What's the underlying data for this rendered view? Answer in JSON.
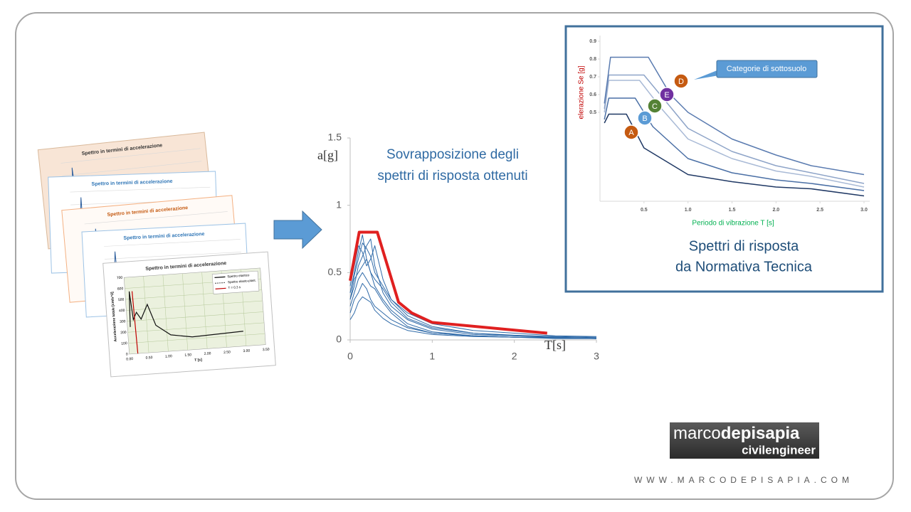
{
  "thumbnails": {
    "titles": [
      "Spettro in termini di accelerazione",
      "Spettro in termini di accelerazione",
      "Spettro in termini di accelerazione",
      "Spettro in termini di accelerazione",
      "Spettro in termini di accelerazione"
    ],
    "legend": [
      "Spettro elastico",
      "Spettro elasto-plast.",
      "T = 0.3 s"
    ],
    "y_axis_label": "Accelerazione totale [cm/s^2]",
    "x_axis_label": "T [s]",
    "yticks": [
      "0",
      "100",
      "200",
      "300",
      "400",
      "500",
      "600",
      "700"
    ],
    "xticks": [
      "0.00",
      "0.50",
      "1.00",
      "1.50",
      "2.00",
      "2.50",
      "3.00",
      "3.50"
    ]
  },
  "chart_data": [
    {
      "type": "line",
      "annotation": [
        "Sovrapposizione degli",
        "spettri di risposta ottenuti"
      ],
      "y_label": "a[g]",
      "x_label": "T[s]",
      "xlim": [
        0,
        3
      ],
      "ylim": [
        0,
        1.5
      ],
      "xticks": [
        0,
        1,
        2,
        3
      ],
      "yticks": [
        0,
        0.5,
        1,
        1.5
      ],
      "x": [
        0,
        0.05,
        0.1,
        0.15,
        0.2,
        0.25,
        0.3,
        0.4,
        0.5,
        0.7,
        1,
        1.5,
        2,
        2.5,
        3
      ],
      "series": [
        {
          "color": "#2f6aa8",
          "values": [
            0.35,
            0.5,
            0.65,
            0.78,
            0.6,
            0.5,
            0.4,
            0.3,
            0.22,
            0.12,
            0.06,
            0.03,
            0.02,
            0.015,
            0.01
          ]
        },
        {
          "color": "#2f6aa8",
          "values": [
            0.3,
            0.4,
            0.55,
            0.62,
            0.7,
            0.75,
            0.55,
            0.35,
            0.25,
            0.15,
            0.08,
            0.04,
            0.03,
            0.02,
            0.01
          ]
        },
        {
          "color": "#2f6aa8",
          "values": [
            0.25,
            0.35,
            0.45,
            0.5,
            0.45,
            0.4,
            0.38,
            0.28,
            0.2,
            0.1,
            0.05,
            0.03,
            0.02,
            0.01,
            0.01
          ]
        },
        {
          "color": "#2f6aa8",
          "values": [
            0.4,
            0.55,
            0.7,
            0.65,
            0.55,
            0.6,
            0.7,
            0.45,
            0.3,
            0.18,
            0.1,
            0.05,
            0.03,
            0.02,
            0.015
          ]
        },
        {
          "color": "#2f6aa8",
          "values": [
            0.2,
            0.3,
            0.35,
            0.42,
            0.38,
            0.3,
            0.25,
            0.2,
            0.15,
            0.09,
            0.05,
            0.03,
            0.02,
            0.02,
            0.01
          ]
        },
        {
          "color": "#2f6aa8",
          "values": [
            0.3,
            0.45,
            0.5,
            0.55,
            0.6,
            0.5,
            0.45,
            0.38,
            0.28,
            0.16,
            0.09,
            0.05,
            0.035,
            0.025,
            0.02
          ]
        },
        {
          "color": "#2f6aa8",
          "values": [
            0.15,
            0.2,
            0.28,
            0.32,
            0.3,
            0.28,
            0.22,
            0.16,
            0.12,
            0.07,
            0.04,
            0.025,
            0.02,
            0.015,
            0.01
          ]
        },
        {
          "color": "#2f6aa8",
          "values": [
            0.35,
            0.48,
            0.6,
            0.72,
            0.68,
            0.62,
            0.5,
            0.4,
            0.3,
            0.2,
            0.12,
            0.07,
            0.05,
            0.03,
            0.025
          ]
        },
        {
          "color": "#e02020",
          "x": [
            0,
            0.11,
            0.33,
            0.59,
            0.75,
            1,
            2.4
          ],
          "values": [
            0.44,
            0.8,
            0.8,
            0.28,
            0.2,
            0.13,
            0.05
          ]
        }
      ]
    },
    {
      "type": "line",
      "caption": [
        "Spettri di risposta",
        "da Normativa Tecnica"
      ],
      "callout": "Categorie di sottosuolo",
      "y_label": "elerazione Se [g]",
      "x_label": "Periodo di vibrazione T [s]",
      "xlim": [
        0,
        3
      ],
      "ylim": [
        0,
        0.9
      ],
      "xticks": [
        0.5,
        {
          "value": 1,
          "label": "1.0"
        },
        1.5,
        {
          "value": 2,
          "label": "2.0"
        },
        2.5,
        {
          "value": 3,
          "label": "3.0"
        }
      ],
      "yticks": [
        0.5,
        0.6,
        0.7,
        0.8,
        0.9
      ],
      "series": [
        {
          "name": "A",
          "color": "#1f3864",
          "label_color": "#c55a11",
          "x": [
            0.05,
            0.1,
            0.3,
            0.5,
            1,
            1.5,
            2,
            2.4,
            3
          ],
          "values": [
            0.44,
            0.49,
            0.49,
            0.3,
            0.15,
            0.11,
            0.08,
            0.07,
            0.03
          ]
        },
        {
          "name": "B",
          "color": "#4a6fa5",
          "label_color": "#5b9bd5",
          "x": [
            0.05,
            0.1,
            0.4,
            0.6,
            1,
            1.5,
            2,
            2.4,
            3
          ],
          "values": [
            0.46,
            0.58,
            0.58,
            0.42,
            0.24,
            0.16,
            0.12,
            0.1,
            0.06
          ]
        },
        {
          "name": "C",
          "color": "#a9bad6",
          "label_color": "#548235",
          "x": [
            0.05,
            0.1,
            0.45,
            0.7,
            1,
            1.5,
            2,
            2.4,
            3
          ],
          "values": [
            0.5,
            0.68,
            0.68,
            0.52,
            0.35,
            0.24,
            0.17,
            0.14,
            0.08
          ]
        },
        {
          "name": "E",
          "color": "#8ea4c8",
          "label_color": "#7030a0",
          "x": [
            0.05,
            0.1,
            0.5,
            0.75,
            1,
            1.5,
            2,
            2.4,
            3
          ],
          "values": [
            0.52,
            0.71,
            0.71,
            0.56,
            0.41,
            0.28,
            0.2,
            0.16,
            0.1
          ]
        },
        {
          "name": "D",
          "color": "#5a7bb0",
          "label_color": "#c55a11",
          "x": [
            0.05,
            0.12,
            0.55,
            0.8,
            1,
            1.5,
            2,
            2.4,
            3
          ],
          "values": [
            0.55,
            0.81,
            0.81,
            0.6,
            0.5,
            0.35,
            0.26,
            0.2,
            0.15
          ]
        }
      ]
    }
  ],
  "branding": {
    "logo_light": "marco",
    "logo_bold": "depisapia",
    "tagline": "civilengineer",
    "website": "WWW.MARCODEPISAPIA.COM"
  }
}
